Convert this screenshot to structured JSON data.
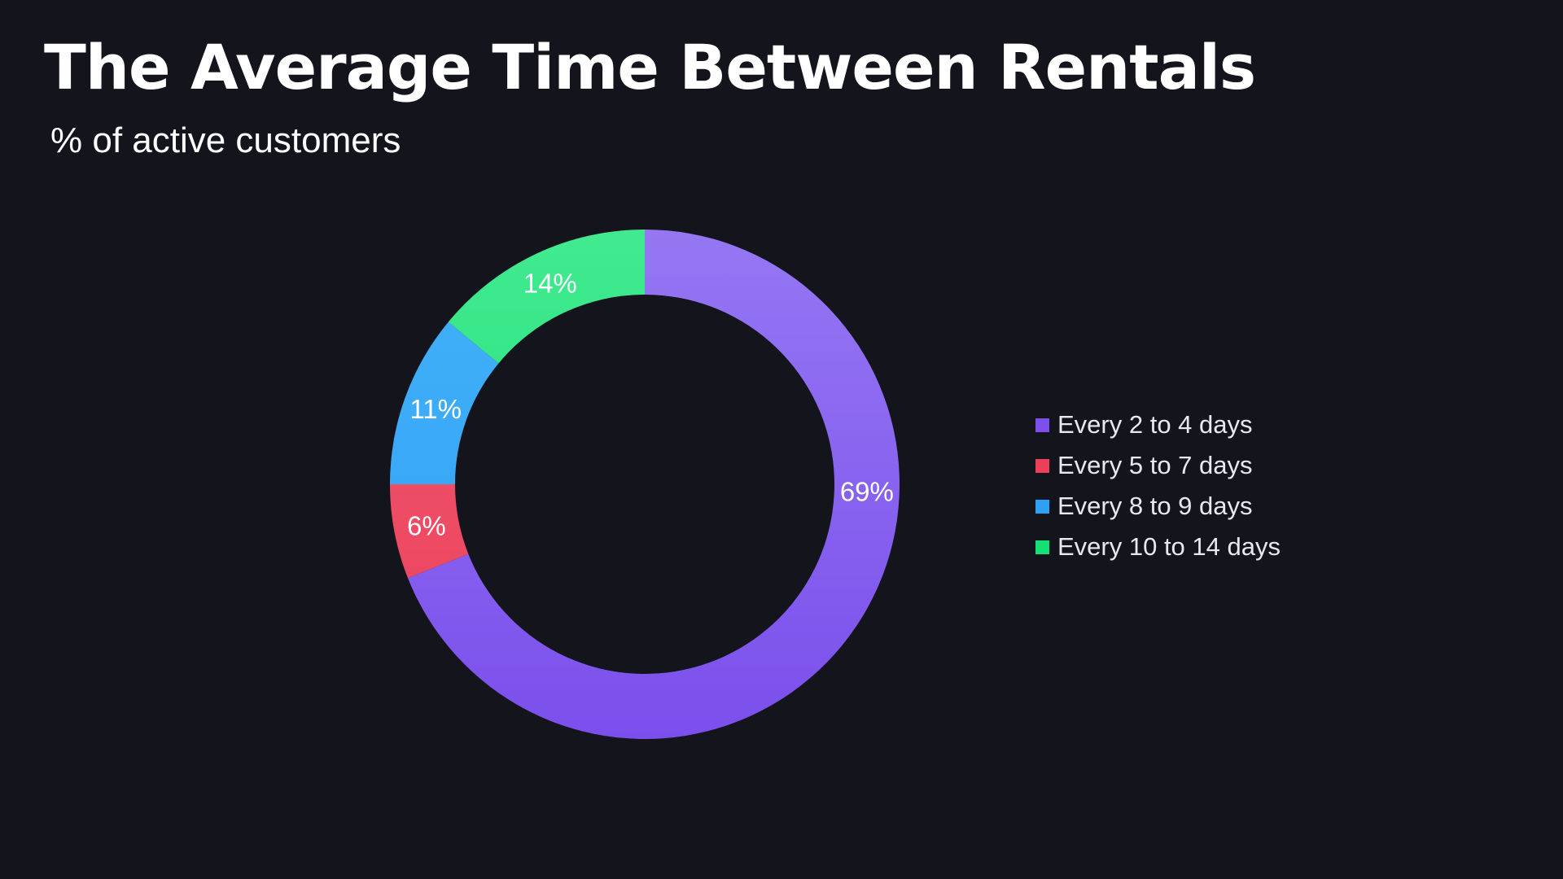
{
  "title": "The Average Time Between Rentals",
  "subtitle": "% of active customers",
  "chart_data": {
    "type": "pie",
    "style": "donut",
    "title": "The Average Time Between Rentals",
    "subtitle": "% of active customers",
    "legend_position": "right",
    "categories": [
      "Every 2 to 4 days",
      "Every 5 to 7 days",
      "Every 8 to 9 days",
      "Every 10 to 14 days"
    ],
    "values": [
      69,
      6,
      11,
      14
    ],
    "labels": [
      "69%",
      "6%",
      "11%",
      "14%"
    ],
    "colors": [
      "#7b4fec",
      "#ec3f5a",
      "#2f9ff3",
      "#14de76"
    ],
    "colors_light": [
      "#9577f3",
      "#f05b73",
      "#43b2fb",
      "#42ea8f"
    ],
    "start_angle_deg": 0,
    "direction": "clockwise"
  }
}
